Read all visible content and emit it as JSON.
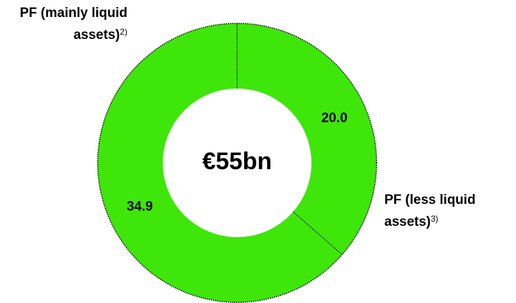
{
  "chart_data": {
    "type": "donut",
    "categories": [
      "PF (less liquid assets)",
      "PF (mainly liquid assets)"
    ],
    "notes": [
      "3)",
      "2)"
    ],
    "values": [
      20.0,
      34.9
    ],
    "value_labels": [
      "20.0",
      "34.9"
    ],
    "center_label": "€55bn",
    "color": "#3fe60a"
  }
}
